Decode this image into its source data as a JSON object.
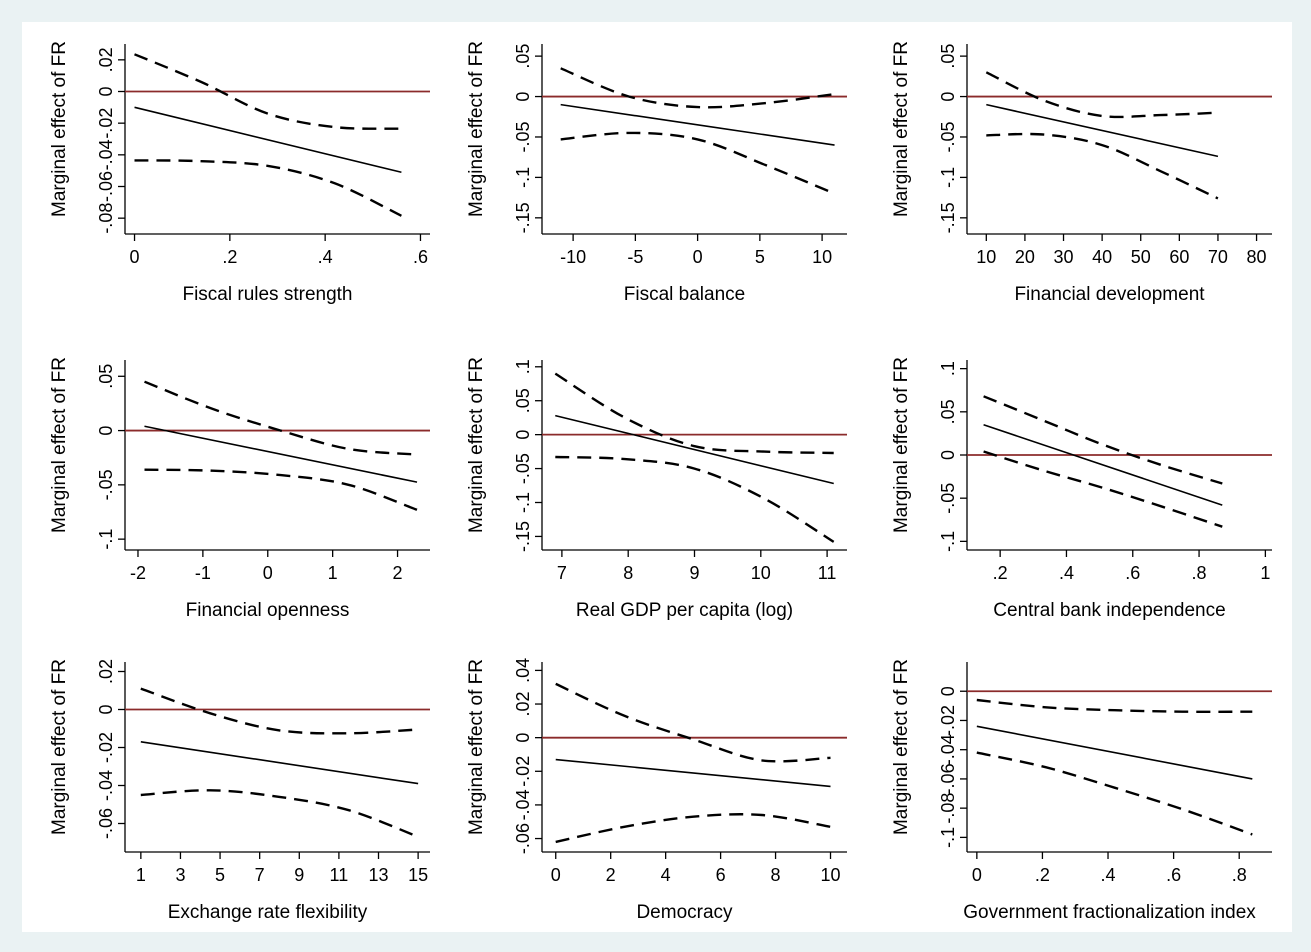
{
  "figure": {
    "colors": {
      "background": "#eaf2f3",
      "panel": "#ffffff",
      "zero_line": "#8b2b2b",
      "lines": "#000000"
    }
  },
  "chart_data": [
    {
      "type": "line",
      "xlabel": "Fiscal rules strength",
      "ylabel": "Marginal effect of FR",
      "xlim": [
        -0.02,
        0.62
      ],
      "ylim": [
        -0.09,
        0.03
      ],
      "xticks": [
        0,
        0.2,
        0.4,
        0.6
      ],
      "xtick_labels": [
        "0",
        ".2",
        ".4",
        ".6"
      ],
      "yticks": [
        -0.08,
        -0.06,
        -0.04,
        -0.02,
        0,
        0.02
      ],
      "ytick_labels": [
        "-.08",
        "-.06",
        "-.04",
        "-.02",
        "0",
        ".02"
      ],
      "x": [
        0,
        0.14,
        0.28,
        0.42,
        0.56
      ],
      "estimate": [
        -0.01,
        -0.0203,
        -0.0305,
        -0.0408,
        -0.051
      ],
      "lower": [
        -0.0435,
        -0.044,
        -0.047,
        -0.058,
        -0.0785
      ],
      "upper": [
        0.0235,
        0.006,
        -0.014,
        -0.0225,
        -0.0235
      ]
    },
    {
      "type": "line",
      "xlabel": "Fiscal balance",
      "ylabel": "Marginal effect of FR",
      "xlim": [
        -12.5,
        12
      ],
      "ylim": [
        -0.17,
        0.065
      ],
      "xticks": [
        -10,
        -5,
        0,
        5,
        10
      ],
      "xtick_labels": [
        "-10",
        "-5",
        "0",
        "5",
        "10"
      ],
      "yticks": [
        -0.15,
        -0.1,
        -0.05,
        0,
        0.05
      ],
      "ytick_labels": [
        "-.15",
        "-.1",
        "-.05",
        "0",
        ".05"
      ],
      "x": [
        -11,
        -5.5,
        0,
        5.5,
        11
      ],
      "estimate": [
        -0.01,
        -0.0225,
        -0.035,
        -0.0475,
        -0.06
      ],
      "lower": [
        -0.053,
        -0.045,
        -0.053,
        -0.085,
        -0.12
      ],
      "upper": [
        0.035,
        0.0,
        -0.013,
        -0.008,
        0.003
      ]
    },
    {
      "type": "line",
      "xlabel": "Financial development",
      "ylabel": "Marginal effect of FR",
      "xlim": [
        5,
        84
      ],
      "ylim": [
        -0.17,
        0.065
      ],
      "xticks": [
        10,
        20,
        30,
        40,
        50,
        60,
        70,
        80
      ],
      "xtick_labels": [
        "10",
        "20",
        "30",
        "40",
        "50",
        "60",
        "70",
        "80"
      ],
      "yticks": [
        -0.15,
        -0.1,
        -0.05,
        0,
        0.05
      ],
      "ytick_labels": [
        "-.15",
        "-.1",
        "-.05",
        "0",
        ".05"
      ],
      "x": [
        10,
        25,
        40,
        55,
        70
      ],
      "estimate": [
        -0.01,
        -0.026,
        -0.042,
        -0.058,
        -0.074
      ],
      "lower": [
        -0.048,
        -0.047,
        -0.06,
        -0.092,
        -0.126
      ],
      "upper": [
        0.03,
        -0.005,
        -0.024,
        -0.023,
        -0.02
      ]
    },
    {
      "type": "line",
      "xlabel": "Financial openness",
      "ylabel": "Marginal effect of FR",
      "xlim": [
        -2.2,
        2.5
      ],
      "ylim": [
        -0.11,
        0.065
      ],
      "xticks": [
        -2,
        -1,
        0,
        1,
        2
      ],
      "xtick_labels": [
        "-2",
        "-1",
        "0",
        "1",
        "2"
      ],
      "yticks": [
        -0.1,
        -0.05,
        0,
        0.05
      ],
      "ytick_labels": [
        "-.1",
        "-.05",
        "0",
        ".05"
      ],
      "x": [
        -1.9,
        -0.85,
        0.2,
        1.25,
        2.3
      ],
      "estimate": [
        0.004,
        -0.009,
        -0.0215,
        -0.034,
        -0.0475
      ],
      "lower": [
        -0.036,
        -0.037,
        -0.041,
        -0.05,
        -0.073
      ],
      "upper": [
        0.045,
        0.02,
        0.0,
        -0.017,
        -0.022
      ]
    },
    {
      "type": "line",
      "xlabel": "Real GDP per capita (log)",
      "ylabel": "Marginal effect of FR",
      "xlim": [
        6.7,
        11.3
      ],
      "ylim": [
        -0.17,
        0.11
      ],
      "xticks": [
        7,
        8,
        9,
        10,
        11
      ],
      "xtick_labels": [
        "7",
        "8",
        "9",
        "10",
        "11"
      ],
      "yticks": [
        -0.15,
        -0.1,
        -0.05,
        0,
        0.05,
        0.1
      ],
      "ytick_labels": [
        "-.15",
        "-.1",
        "-.05",
        "0",
        ".05",
        ".1"
      ],
      "x": [
        6.9,
        7.95,
        9,
        10.05,
        11.1
      ],
      "estimate": [
        0.028,
        0.003,
        -0.022,
        -0.047,
        -0.072
      ],
      "lower": [
        -0.033,
        -0.036,
        -0.05,
        -0.094,
        -0.158
      ],
      "upper": [
        0.09,
        0.025,
        -0.017,
        -0.025,
        -0.027
      ]
    },
    {
      "type": "line",
      "xlabel": "Central bank independence",
      "ylabel": "Marginal effect of FR",
      "xlim": [
        0.1,
        1.02
      ],
      "ylim": [
        -0.11,
        0.11
      ],
      "xticks": [
        0.2,
        0.4,
        0.6,
        0.8,
        1
      ],
      "xtick_labels": [
        ".2",
        ".4",
        ".6",
        ".8",
        "1"
      ],
      "yticks": [
        -0.1,
        -0.05,
        0,
        0.05,
        0.1
      ],
      "ytick_labels": [
        "-.1",
        "-.05",
        "0",
        ".05",
        ".1"
      ],
      "x": [
        0.15,
        0.33,
        0.51,
        0.69,
        0.87
      ],
      "estimate": [
        0.035,
        0.011,
        -0.012,
        -0.035,
        -0.058
      ],
      "lower": [
        0.004,
        -0.018,
        -0.038,
        -0.06,
        -0.083
      ],
      "upper": [
        0.068,
        0.04,
        0.012,
        -0.012,
        -0.033
      ]
    },
    {
      "type": "line",
      "xlabel": "Exchange rate flexibility",
      "ylabel": "Marginal effect of FR",
      "xlim": [
        0.2,
        15.6
      ],
      "ylim": [
        -0.075,
        0.025
      ],
      "xticks": [
        1,
        3,
        5,
        7,
        9,
        11,
        13,
        15
      ],
      "xtick_labels": [
        "1",
        "3",
        "5",
        "7",
        "9",
        "11",
        "13",
        "15"
      ],
      "yticks": [
        -0.06,
        -0.04,
        -0.02,
        0,
        0.02
      ],
      "ytick_labels": [
        "-.06",
        "-.04",
        "-.02",
        "0",
        ".02"
      ],
      "x": [
        1,
        4.5,
        8,
        11.5,
        15
      ],
      "estimate": [
        -0.017,
        -0.0225,
        -0.028,
        -0.0335,
        -0.039
      ],
      "lower": [
        -0.045,
        -0.0425,
        -0.046,
        -0.053,
        -0.067
      ],
      "upper": [
        0.011,
        -0.002,
        -0.011,
        -0.0125,
        -0.0105
      ]
    },
    {
      "type": "line",
      "xlabel": "Democracy",
      "ylabel": "Marginal effect of FR",
      "xlim": [
        -0.5,
        10.6
      ],
      "ylim": [
        -0.068,
        0.045
      ],
      "xticks": [
        0,
        2,
        4,
        6,
        8,
        10
      ],
      "xtick_labels": [
        "0",
        "2",
        "4",
        "6",
        "8",
        "10"
      ],
      "yticks": [
        -0.06,
        -0.04,
        -0.02,
        0,
        0.02,
        0.04
      ],
      "ytick_labels": [
        "-.06",
        "-.04",
        "-.02",
        "0",
        ".02",
        ".04"
      ],
      "x": [
        0,
        2.5,
        5,
        7.5,
        10
      ],
      "estimate": [
        -0.013,
        -0.017,
        -0.021,
        -0.025,
        -0.029
      ],
      "lower": [
        -0.062,
        -0.053,
        -0.047,
        -0.046,
        -0.053
      ],
      "upper": [
        0.032,
        0.013,
        -0.001,
        -0.0135,
        -0.012
      ]
    },
    {
      "type": "line",
      "xlabel": "Government fractionalization index",
      "ylabel": "Marginal effect of FR",
      "xlim": [
        -0.03,
        0.9
      ],
      "ylim": [
        -0.11,
        0.02
      ],
      "xticks": [
        0,
        0.2,
        0.4,
        0.6,
        0.8
      ],
      "xtick_labels": [
        "0",
        ".2",
        ".4",
        ".6",
        ".8"
      ],
      "yticks": [
        -0.1,
        -0.08,
        -0.06,
        -0.04,
        -0.02,
        0
      ],
      "ytick_labels": [
        "-.1",
        "-.08",
        "-.06",
        "-.04",
        "-.02",
        "0"
      ],
      "x": [
        0,
        0.21,
        0.42,
        0.63,
        0.84
      ],
      "estimate": [
        -0.024,
        -0.033,
        -0.042,
        -0.051,
        -0.06
      ],
      "lower": [
        -0.042,
        -0.052,
        -0.066,
        -0.081,
        -0.098
      ],
      "upper": [
        -0.006,
        -0.011,
        -0.013,
        -0.014,
        -0.014
      ]
    }
  ]
}
